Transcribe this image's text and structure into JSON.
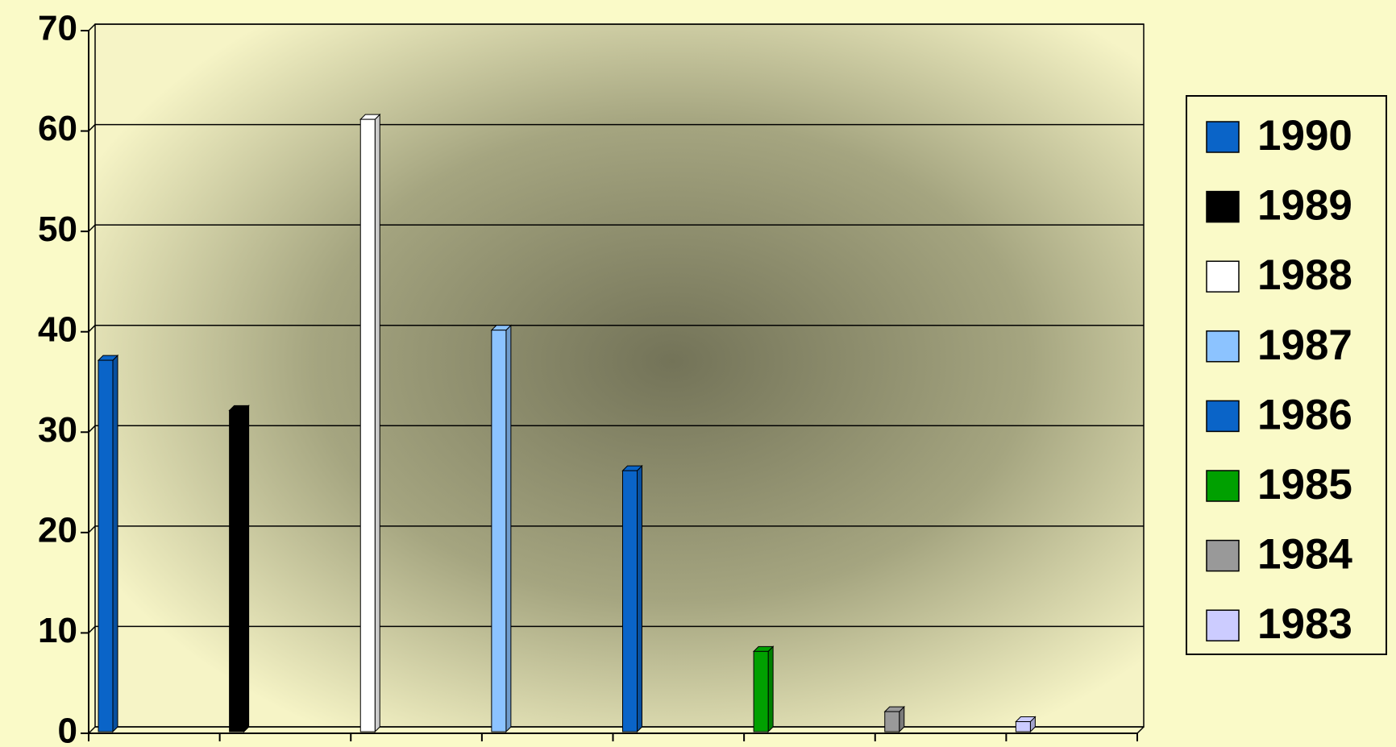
{
  "chart_data": {
    "type": "bar",
    "series": [
      {
        "name": "1990",
        "color": "#0a64c8",
        "values": [
          37
        ]
      },
      {
        "name": "1989",
        "color": "#000000",
        "values": [
          32
        ]
      },
      {
        "name": "1988",
        "color": "#ffffff",
        "values": [
          61
        ]
      },
      {
        "name": "1987",
        "color": "#8cc3ff",
        "values": [
          40
        ]
      },
      {
        "name": "1986",
        "color": "#0a64c8",
        "values": [
          26
        ]
      },
      {
        "name": "1985",
        "color": "#00a000",
        "values": [
          8
        ]
      },
      {
        "name": "1984",
        "color": "#999999",
        "values": [
          2
        ]
      },
      {
        "name": "1983",
        "color": "#ccccff",
        "values": [
          1
        ]
      }
    ],
    "ylim": [
      0,
      70
    ],
    "yticks": [
      0,
      10,
      20,
      30,
      40,
      50,
      60,
      70
    ],
    "grid": true,
    "legend": "right"
  }
}
